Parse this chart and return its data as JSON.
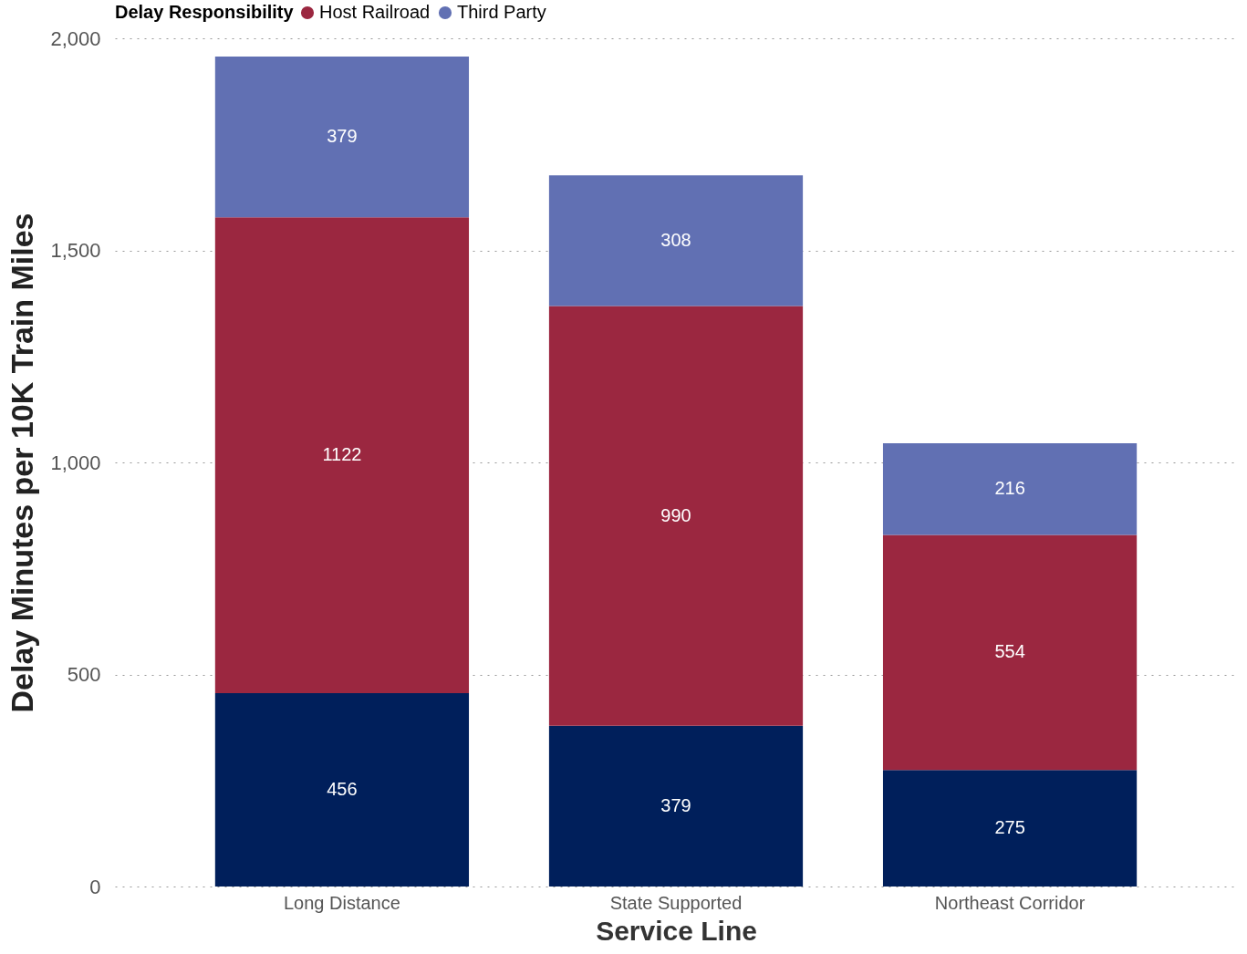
{
  "chart_data": {
    "type": "bar",
    "stacked": true,
    "xlabel": "Service Line",
    "ylabel": "Delay Minutes per 10K Train Miles",
    "legend_title": "Delay Responsibility",
    "legend": "top left",
    "categories": [
      "Long Distance",
      "State Supported",
      "Northeast Corridor"
    ],
    "series": [
      {
        "color": "#001f5b",
        "values": [
          456,
          379,
          275
        ]
      },
      {
        "name": "Host Railroad",
        "color": "#9b2740",
        "values": [
          1122,
          990,
          554
        ]
      },
      {
        "name": "Third Party",
        "color": "#6170b3",
        "values": [
          379,
          308,
          216
        ]
      }
    ],
    "ylim": [
      0,
      2000
    ],
    "yticks": [
      0,
      {
        "value": 500,
        "label": "500"
      },
      {
        "value": 1000,
        "label": "1,000"
      },
      {
        "value": 1500,
        "label": "1,500"
      },
      {
        "value": 2000,
        "label": "2,000"
      }
    ],
    "grid": "y",
    "data_labels": true
  }
}
